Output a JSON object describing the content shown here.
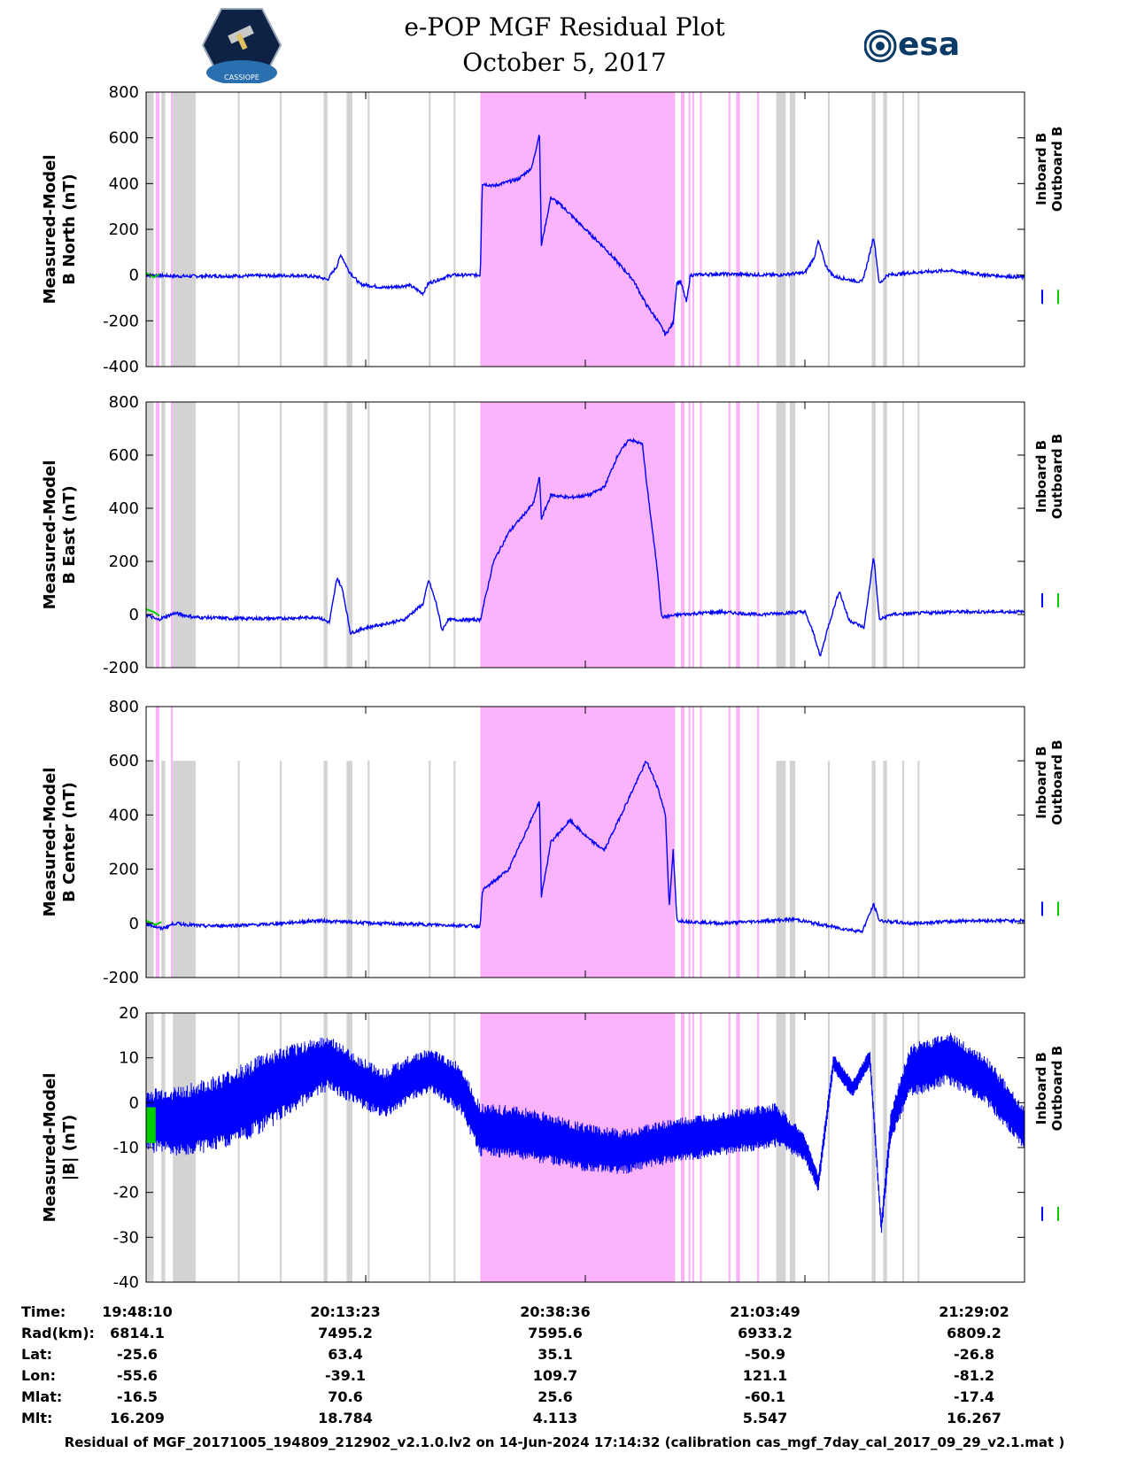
{
  "header": {
    "title_line1": "e-POP MGF Residual Plot",
    "title_line2": "October 5, 2017",
    "logo_left_text": "CASSIOPE",
    "logo_right_text": "esa"
  },
  "colors": {
    "inboard": "#0000ff",
    "outboard": "#00cc00",
    "gray_band": "#d3d3d3",
    "pink_band": "#fbb4fb"
  },
  "chart_data": [
    {
      "type": "line",
      "name": "north",
      "ylabel_line1": "Measured-Model",
      "ylabel_line2": "B North (nT)",
      "ylim": [
        -400,
        800
      ],
      "yticks": [
        -400,
        -200,
        0,
        200,
        400,
        600,
        800
      ],
      "legend": [
        "Inboard B",
        "Outboard B"
      ],
      "legend_position": "right",
      "grid": false,
      "series_inboard": [
        [
          0,
          0
        ],
        [
          10,
          -3
        ],
        [
          20,
          -5
        ],
        [
          40,
          -4
        ],
        [
          60,
          -3
        ],
        [
          80,
          -2
        ],
        [
          90,
          -8
        ],
        [
          95,
          -20
        ],
        [
          100,
          40
        ],
        [
          102,
          90
        ],
        [
          106,
          20
        ],
        [
          112,
          -40
        ],
        [
          125,
          -55
        ],
        [
          138,
          -45
        ],
        [
          145,
          -80
        ],
        [
          148,
          -35
        ],
        [
          160,
          0
        ],
        [
          175,
          0
        ],
        [
          176,
          400
        ],
        [
          182,
          390
        ],
        [
          195,
          420
        ],
        [
          202,
          470
        ],
        [
          206,
          620
        ],
        [
          207,
          130
        ],
        [
          212,
          340
        ],
        [
          218,
          300
        ],
        [
          230,
          200
        ],
        [
          240,
          120
        ],
        [
          255,
          -20
        ],
        [
          262,
          -130
        ],
        [
          268,
          -200
        ],
        [
          272,
          -260
        ],
        [
          276,
          -210
        ],
        [
          278,
          -30
        ],
        [
          280,
          -30
        ],
        [
          283,
          -120
        ],
        [
          285,
          0
        ],
        [
          300,
          5
        ],
        [
          330,
          0
        ],
        [
          345,
          10
        ],
        [
          350,
          80
        ],
        [
          352,
          150
        ],
        [
          356,
          40
        ],
        [
          360,
          -5
        ],
        [
          368,
          -20
        ],
        [
          375,
          -30
        ],
        [
          378,
          60
        ],
        [
          381,
          170
        ],
        [
          384,
          -40
        ],
        [
          388,
          0
        ],
        [
          400,
          10
        ],
        [
          420,
          20
        ],
        [
          440,
          0
        ],
        [
          460,
          -10
        ]
      ],
      "series_outboard": [
        [
          0,
          10
        ],
        [
          4,
          -10
        ],
        [
          7,
          5
        ]
      ],
      "gray_bands": [
        [
          0,
          4
        ],
        [
          8,
          10
        ],
        [
          14,
          26
        ],
        [
          48,
          49
        ],
        [
          70,
          71
        ],
        [
          93,
          95
        ],
        [
          105,
          108
        ],
        [
          116,
          117
        ],
        [
          148,
          149
        ],
        [
          161,
          162
        ],
        [
          330,
          335
        ],
        [
          337,
          340
        ],
        [
          357,
          358
        ],
        [
          380,
          382
        ],
        [
          386,
          388
        ],
        [
          396,
          397
        ],
        [
          404,
          405
        ]
      ],
      "pink_bands": [
        [
          5,
          7
        ],
        [
          13,
          14
        ],
        [
          175,
          277
        ],
        [
          280,
          282
        ],
        [
          284,
          285
        ],
        [
          286,
          287
        ],
        [
          290,
          291
        ],
        [
          305,
          306
        ],
        [
          309,
          311
        ],
        [
          320,
          321
        ]
      ]
    },
    {
      "type": "line",
      "name": "east",
      "ylabel_line1": "Measured-Model",
      "ylabel_line2": "B East (nT)",
      "ylim": [
        -200,
        800
      ],
      "yticks": [
        -200,
        0,
        200,
        400,
        600,
        800
      ],
      "legend": [
        "Inboard B",
        "Outboard B"
      ],
      "legend_position": "right",
      "grid": false,
      "series_inboard": [
        [
          0,
          0
        ],
        [
          6,
          -20
        ],
        [
          15,
          5
        ],
        [
          25,
          -10
        ],
        [
          45,
          -15
        ],
        [
          70,
          -15
        ],
        [
          90,
          -10
        ],
        [
          96,
          -30
        ],
        [
          100,
          140
        ],
        [
          103,
          90
        ],
        [
          107,
          -70
        ],
        [
          115,
          -50
        ],
        [
          135,
          -20
        ],
        [
          145,
          40
        ],
        [
          148,
          130
        ],
        [
          152,
          40
        ],
        [
          155,
          -60
        ],
        [
          158,
          -20
        ],
        [
          175,
          -20
        ],
        [
          182,
          200
        ],
        [
          190,
          310
        ],
        [
          203,
          420
        ],
        [
          206,
          520
        ],
        [
          207,
          360
        ],
        [
          212,
          450
        ],
        [
          222,
          440
        ],
        [
          232,
          450
        ],
        [
          240,
          480
        ],
        [
          247,
          600
        ],
        [
          253,
          660
        ],
        [
          260,
          640
        ],
        [
          262,
          500
        ],
        [
          268,
          150
        ],
        [
          270,
          -10
        ],
        [
          280,
          0
        ],
        [
          300,
          10
        ],
        [
          320,
          0
        ],
        [
          345,
          10
        ],
        [
          350,
          -80
        ],
        [
          353,
          -160
        ],
        [
          357,
          -50
        ],
        [
          363,
          90
        ],
        [
          368,
          -20
        ],
        [
          376,
          -50
        ],
        [
          381,
          220
        ],
        [
          384,
          -20
        ],
        [
          390,
          0
        ],
        [
          420,
          10
        ],
        [
          460,
          10
        ]
      ],
      "series_outboard": [
        [
          0,
          20
        ],
        [
          4,
          10
        ],
        [
          7,
          -5
        ]
      ],
      "gray_bands": [
        [
          0,
          4
        ],
        [
          8,
          10
        ],
        [
          14,
          26
        ],
        [
          48,
          49
        ],
        [
          70,
          71
        ],
        [
          93,
          95
        ],
        [
          105,
          108
        ],
        [
          116,
          117
        ],
        [
          148,
          149
        ],
        [
          161,
          162
        ],
        [
          330,
          335
        ],
        [
          337,
          340
        ],
        [
          357,
          358
        ],
        [
          380,
          382
        ],
        [
          386,
          388
        ],
        [
          396,
          397
        ],
        [
          404,
          405
        ]
      ],
      "pink_bands": [
        [
          5,
          7
        ],
        [
          13,
          14
        ],
        [
          175,
          277
        ],
        [
          280,
          282
        ],
        [
          284,
          285
        ],
        [
          286,
          287
        ],
        [
          290,
          291
        ],
        [
          305,
          306
        ],
        [
          309,
          311
        ],
        [
          320,
          321
        ]
      ]
    },
    {
      "type": "line",
      "name": "center",
      "ylabel_line1": "Measured-Model",
      "ylabel_line2": "B Center (nT)",
      "ylim": [
        -200,
        800
      ],
      "yticks": [
        -200,
        0,
        200,
        400,
        600,
        800
      ],
      "legend": [
        "Inboard B",
        "Outboard B"
      ],
      "legend_position": "right",
      "grid": false,
      "series_inboard": [
        [
          0,
          0
        ],
        [
          8,
          -20
        ],
        [
          15,
          0
        ],
        [
          30,
          -10
        ],
        [
          60,
          -5
        ],
        [
          90,
          10
        ],
        [
          120,
          0
        ],
        [
          150,
          -5
        ],
        [
          175,
          -10
        ],
        [
          176,
          120
        ],
        [
          190,
          200
        ],
        [
          206,
          450
        ],
        [
          207,
          100
        ],
        [
          212,
          300
        ],
        [
          222,
          380
        ],
        [
          232,
          310
        ],
        [
          240,
          270
        ],
        [
          250,
          420
        ],
        [
          262,
          600
        ],
        [
          268,
          500
        ],
        [
          272,
          400
        ],
        [
          274,
          60
        ],
        [
          276,
          270
        ],
        [
          278,
          10
        ],
        [
          300,
          0
        ],
        [
          340,
          15
        ],
        [
          350,
          0
        ],
        [
          365,
          -20
        ],
        [
          375,
          -30
        ],
        [
          381,
          70
        ],
        [
          384,
          10
        ],
        [
          400,
          0
        ],
        [
          430,
          10
        ],
        [
          460,
          10
        ]
      ],
      "series_outboard": [
        [
          0,
          10
        ],
        [
          5,
          -5
        ],
        [
          8,
          5
        ]
      ],
      "gray_bands": [
        [
          0,
          4
        ],
        [
          8,
          10
        ],
        [
          14,
          26
        ],
        [
          48,
          49
        ],
        [
          70,
          71
        ],
        [
          93,
          95
        ],
        [
          105,
          108
        ],
        [
          116,
          117
        ],
        [
          148,
          149
        ],
        [
          161,
          162
        ],
        [
          330,
          335
        ],
        [
          337,
          340
        ],
        [
          357,
          358
        ],
        [
          380,
          382
        ],
        [
          386,
          388
        ],
        [
          396,
          397
        ],
        [
          404,
          405
        ]
      ],
      "pink_bands": [
        [
          5,
          7
        ],
        [
          13,
          14
        ],
        [
          175,
          277
        ],
        [
          280,
          282
        ],
        [
          284,
          285
        ],
        [
          286,
          287
        ],
        [
          290,
          291
        ],
        [
          305,
          306
        ],
        [
          309,
          311
        ],
        [
          320,
          321
        ]
      ],
      "short_bands_top": 600
    },
    {
      "type": "line",
      "name": "total",
      "ylabel_line1": "Measured-Model",
      "ylabel_line2": "|B| (nT)",
      "ylim": [
        -40,
        20
      ],
      "yticks": [
        -40,
        -30,
        -20,
        -10,
        0,
        10,
        20
      ],
      "legend": [
        "Inboard B",
        "Outboard B"
      ],
      "legend_position": "right",
      "grid": false,
      "center_inboard": [
        [
          0,
          -4
        ],
        [
          20,
          -4
        ],
        [
          40,
          -2
        ],
        [
          60,
          2
        ],
        [
          80,
          6
        ],
        [
          95,
          9
        ],
        [
          110,
          5
        ],
        [
          125,
          2
        ],
        [
          140,
          6
        ],
        [
          150,
          7
        ],
        [
          165,
          3
        ],
        [
          175,
          -6
        ],
        [
          200,
          -7
        ],
        [
          230,
          -10
        ],
        [
          250,
          -11
        ],
        [
          270,
          -9
        ],
        [
          300,
          -7
        ],
        [
          330,
          -5
        ],
        [
          345,
          -10
        ],
        [
          352,
          -18
        ],
        [
          360,
          9
        ],
        [
          370,
          3
        ],
        [
          379,
          10
        ],
        [
          385,
          -28
        ],
        [
          390,
          -5
        ],
        [
          400,
          7
        ],
        [
          420,
          10
        ],
        [
          440,
          5
        ],
        [
          455,
          -3
        ],
        [
          460,
          -6
        ]
      ],
      "amplitude_inboard": [
        [
          0,
          7
        ],
        [
          20,
          8
        ],
        [
          60,
          9
        ],
        [
          100,
          6
        ],
        [
          150,
          5
        ],
        [
          175,
          6
        ],
        [
          200,
          6
        ],
        [
          250,
          5
        ],
        [
          300,
          5
        ],
        [
          330,
          5
        ],
        [
          345,
          3
        ],
        [
          352,
          2
        ],
        [
          360,
          2
        ],
        [
          380,
          2
        ],
        [
          385,
          2
        ],
        [
          400,
          6
        ],
        [
          420,
          6
        ],
        [
          460,
          5
        ]
      ],
      "outboard_range": [
        0,
        5
      ],
      "gray_bands": [
        [
          0,
          4
        ],
        [
          8,
          10
        ],
        [
          14,
          26
        ],
        [
          48,
          49
        ],
        [
          70,
          71
        ],
        [
          93,
          95
        ],
        [
          105,
          108
        ],
        [
          116,
          117
        ],
        [
          148,
          149
        ],
        [
          161,
          162
        ],
        [
          330,
          335
        ],
        [
          337,
          340
        ],
        [
          357,
          358
        ],
        [
          380,
          382
        ],
        [
          386,
          388
        ],
        [
          396,
          397
        ],
        [
          404,
          405
        ]
      ],
      "pink_bands": [
        [
          175,
          277
        ],
        [
          280,
          282
        ],
        [
          284,
          285
        ],
        [
          286,
          287
        ],
        [
          290,
          291
        ],
        [
          305,
          306
        ],
        [
          309,
          311
        ],
        [
          320,
          321
        ]
      ]
    }
  ],
  "x_axis": {
    "xlim": [
      0,
      460
    ],
    "tick_positions": [
      0,
      115,
      230,
      345,
      460
    ]
  },
  "info_table": {
    "row_labels": [
      "Time:",
      "Rad(km):",
      "Lat:",
      "Lon:",
      "Mlat:",
      "Mlt:"
    ],
    "columns": [
      [
        "19:48:10",
        "6814.1",
        "-25.6",
        "-55.6",
        "-16.5",
        "16.209"
      ],
      [
        "20:13:23",
        "7495.2",
        "63.4",
        "-39.1",
        "70.6",
        "18.784"
      ],
      [
        "20:38:36",
        "7595.6",
        "35.1",
        "109.7",
        "25.6",
        "4.113"
      ],
      [
        "21:03:49",
        "6933.2",
        "-50.9",
        "121.1",
        "-60.1",
        "5.547"
      ],
      [
        "21:29:02",
        "6809.2",
        "-26.8",
        "-81.2",
        "-17.4",
        "16.267"
      ]
    ]
  },
  "footer": "Residual of MGF_20171005_194809_212902_v2.1.0.lv2 on 14-Jun-2024 17:14:32 (calibration cas_mgf_7day_cal_2017_09_29_v2.1.mat )"
}
